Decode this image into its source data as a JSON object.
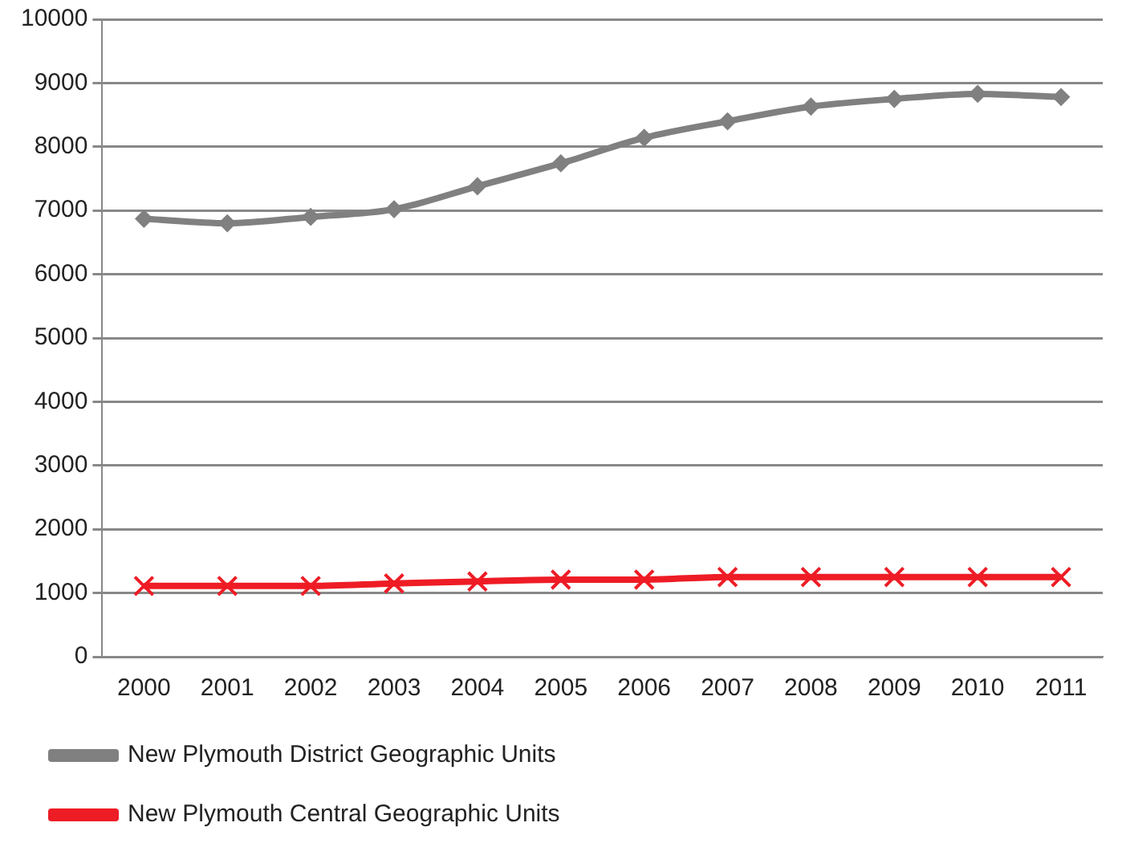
{
  "chart_data": {
    "type": "line",
    "categories": [
      "2000",
      "2001",
      "2002",
      "2003",
      "2004",
      "2005",
      "2006",
      "2007",
      "2008",
      "2009",
      "2010",
      "2011"
    ],
    "series": [
      {
        "name": "New Plymouth District Geographic Units",
        "color": "#808080",
        "marker": "diamond",
        "values": [
          6870,
          6800,
          6900,
          7020,
          7380,
          7740,
          8140,
          8400,
          8630,
          8750,
          8830,
          8780
        ]
      },
      {
        "name": "New Plymouth Central Geographic Units",
        "color": "#ee1c25",
        "marker": "cross",
        "values": [
          1110,
          1110,
          1110,
          1150,
          1180,
          1210,
          1210,
          1250,
          1250,
          1250,
          1250,
          1250
        ]
      }
    ],
    "ylim": [
      0,
      10000
    ],
    "yticks": [
      0,
      1000,
      2000,
      3000,
      4000,
      5000,
      6000,
      7000,
      8000,
      9000,
      10000
    ],
    "grid": "y",
    "legend": "bottom",
    "line_style": "solid"
  }
}
